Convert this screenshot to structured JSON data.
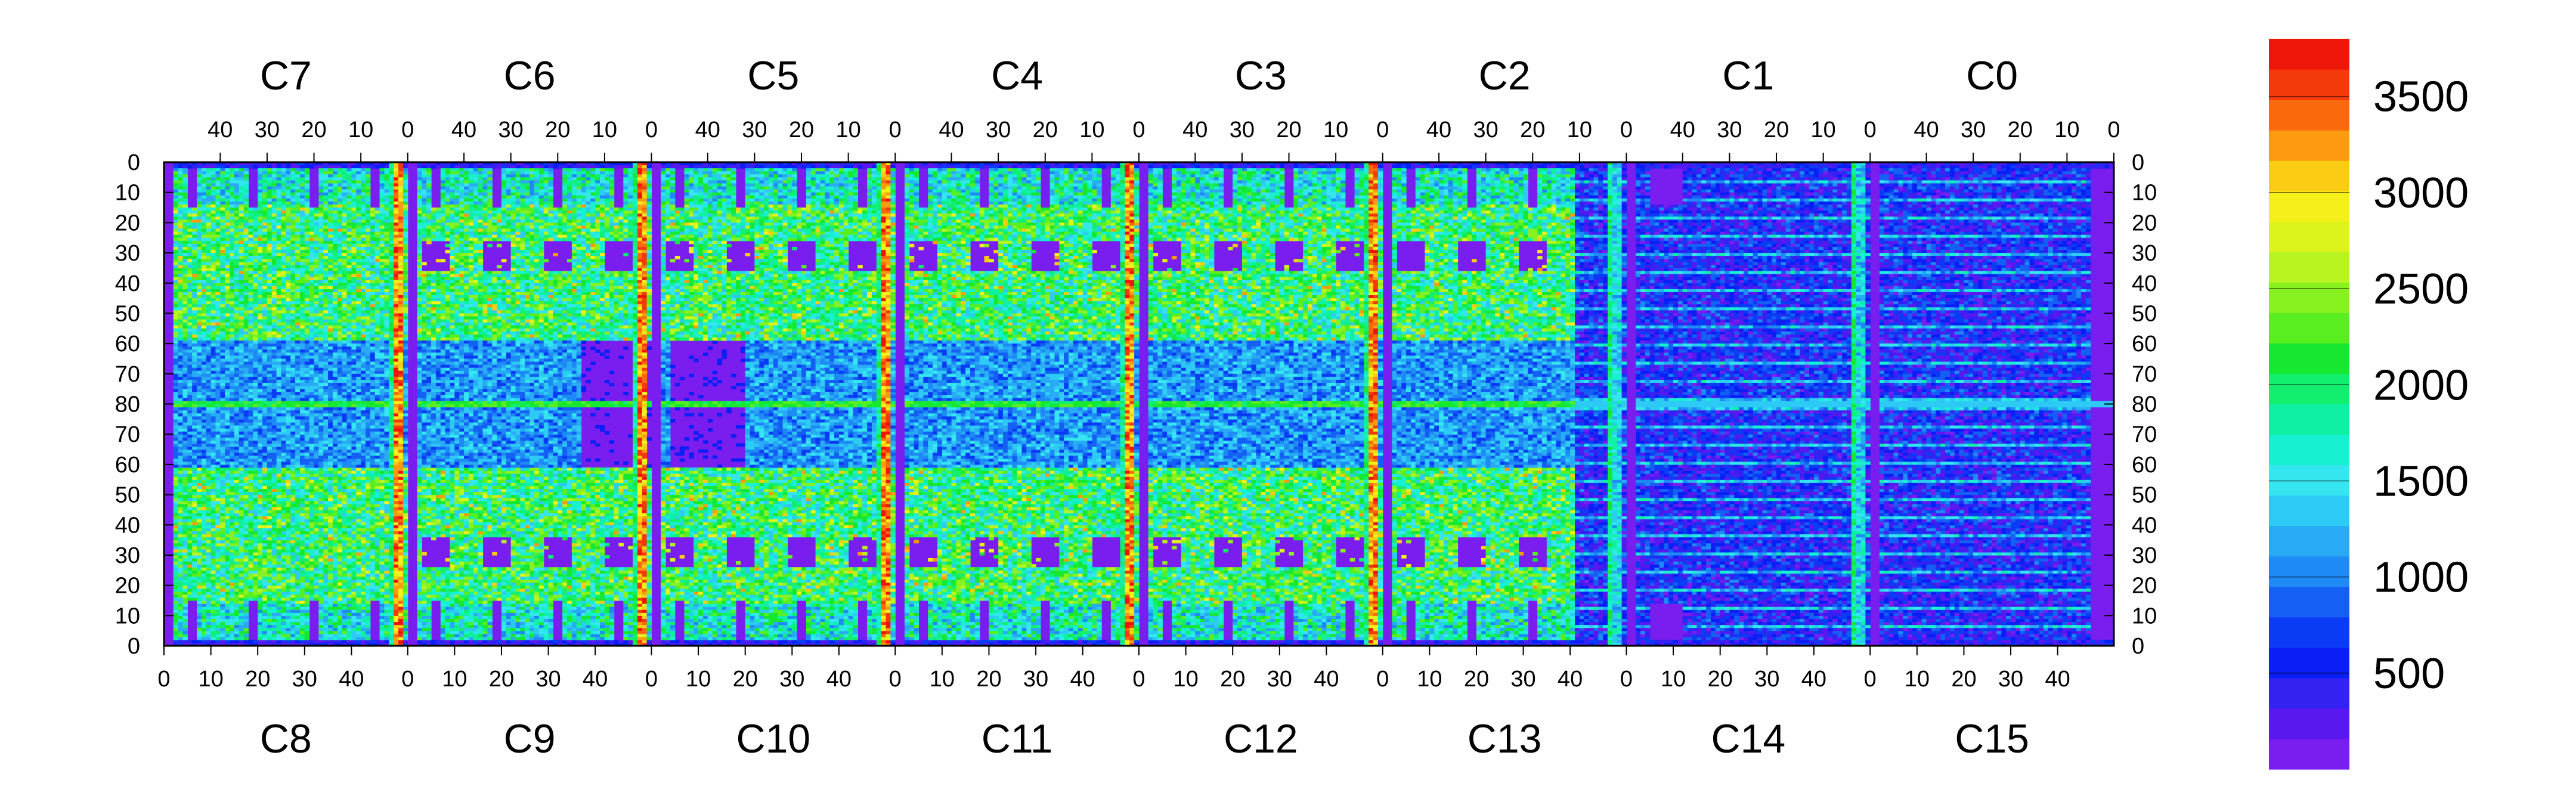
{
  "chart_data": {
    "type": "heatmap",
    "title": "",
    "chips_top": [
      "C7",
      "C6",
      "C5",
      "C4",
      "C3",
      "C2",
      "C1",
      "C0"
    ],
    "chips_bottom": [
      "C8",
      "C9",
      "C10",
      "C11",
      "C12",
      "C13",
      "C14",
      "C15"
    ],
    "top_axis_ticks": [
      "40",
      "30",
      "20",
      "10",
      "0"
    ],
    "bottom_axis_ticks": [
      "0",
      "10",
      "20",
      "30",
      "40"
    ],
    "y_axis_ticks": [
      "0",
      "10",
      "20",
      "30",
      "40",
      "50",
      "60",
      "70",
      "80",
      "70",
      "60",
      "50",
      "40",
      "30",
      "20",
      "10",
      "0"
    ],
    "columns_per_chip": 52,
    "rows_per_half": 80,
    "colorbar": {
      "min": 0,
      "max": 3800,
      "labels": [
        "3500",
        "3000",
        "2500",
        "2000",
        "1500",
        "1000",
        "500"
      ],
      "label_values": [
        3500,
        3000,
        2500,
        2000,
        1500,
        1000,
        500
      ],
      "colors": [
        "#7a1ef0",
        "#5a18f0",
        "#3322f2",
        "#0a1ff5",
        "#0a3cf5",
        "#1460f5",
        "#1e8af5",
        "#28aaf5",
        "#2dcaf5",
        "#35e6f0",
        "#18f0d2",
        "#10f0a5",
        "#12ee6e",
        "#16e830",
        "#58ee20",
        "#88f220",
        "#b8f420",
        "#dcf41c",
        "#f6f01a",
        "#fccc14",
        "#fc9a10",
        "#fa6a0c",
        "#f43a0a",
        "#ee1608"
      ]
    },
    "features": {
      "chip_edge_column_level": "high (~3000-3800)",
      "center_row_level": "~2000",
      "typical_active_level": "~1500-2500",
      "dead_regions_level": "0"
    }
  }
}
